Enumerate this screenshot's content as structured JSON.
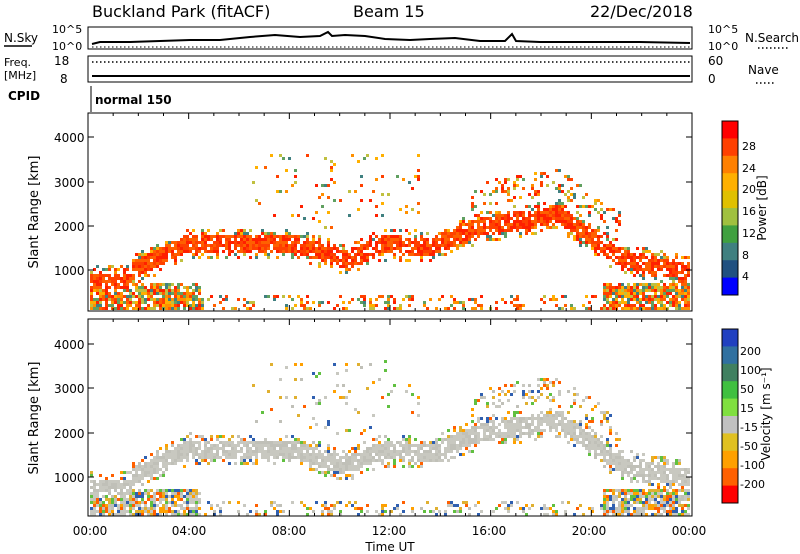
{
  "header": {
    "station": "Buckland Park (fitACF)",
    "beam": "Beam 15",
    "date": "22/Dec/2018"
  },
  "noise_panel": {
    "left_label": "N.Sky",
    "right_label": "N.Search",
    "left_ticks": [
      "10^5",
      "10^0"
    ],
    "right_ticks": [
      "10^5",
      "10^0"
    ]
  },
  "freq_panel": {
    "left_label_1": "Freq.",
    "left_label_2": "[MHz]",
    "left_ticks": [
      "18",
      "8"
    ],
    "right_label": "Nave",
    "right_ticks": [
      "60",
      "0"
    ]
  },
  "cpid": {
    "label": "CPID",
    "mode": "normal 150"
  },
  "chart_data": [
    {
      "type": "heatmap",
      "name": "power",
      "ylabel": "Slant Range [km]",
      "yticks": [
        "4000",
        "3000",
        "2000",
        "1000"
      ],
      "colorbar_label": "Power [dB]",
      "colorbar_ticks": [
        "28",
        "24",
        "20",
        "16",
        "12",
        "8",
        "4"
      ],
      "colorbar_colors": [
        "#ff0000",
        "#ff4000",
        "#ff8000",
        "#ffb000",
        "#e0c000",
        "#a0c040",
        "#40a040",
        "#408080",
        "#205080",
        "#0000ff"
      ],
      "clim": [
        0,
        32
      ]
    },
    {
      "type": "heatmap",
      "name": "velocity",
      "ylabel": "Slant Range [km]",
      "yticks": [
        "4000",
        "3000",
        "2000",
        "1000"
      ],
      "colorbar_label": "Velocity [m s⁻¹]",
      "colorbar_ticks": [
        "200",
        "100",
        "50",
        "15",
        "-15",
        "-50",
        "-100",
        "-200"
      ],
      "colorbar_colors": [
        "#2040c0",
        "#3070a0",
        "#408060",
        "#40c040",
        "#80e040",
        "#c0c0c0",
        "#e0c020",
        "#ffa000",
        "#ff6000",
        "#ff0000"
      ],
      "clim": [
        -250,
        250
      ]
    }
  ],
  "x_axis": {
    "ticks": [
      "00:00",
      "04:00",
      "08:00",
      "12:00",
      "16:00",
      "20:00",
      "00:00"
    ],
    "label": "Time UT"
  }
}
